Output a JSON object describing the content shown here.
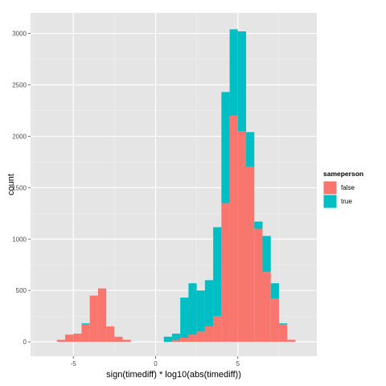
{
  "chart_data": {
    "type": "bar",
    "subtype": "stacked-histogram",
    "xlabel": "sign(timediff) * log10(abs(timediff))",
    "ylabel": "count",
    "xlim": [
      -7.6,
      9.8
    ],
    "ylim": [
      -140,
      3200
    ],
    "x_ticks": [
      -5,
      0,
      5
    ],
    "x_tick_labels": [
      "-5",
      "0",
      "5"
    ],
    "y_ticks": [
      0,
      500,
      1000,
      1500,
      2000,
      2500,
      3000
    ],
    "y_tick_labels": [
      "0",
      "500",
      "1000",
      "1500",
      "2000",
      "2500",
      "3000"
    ],
    "grid": true,
    "legend": {
      "title": "sameperson",
      "position": "right",
      "entries": [
        {
          "label": "false",
          "color": "#F8766D"
        },
        {
          "label": "true",
          "color": "#00BFC4"
        }
      ]
    },
    "bin_width": 0.5,
    "bin_starts": [
      -6.0,
      -5.5,
      -5.0,
      -4.5,
      -4.0,
      -3.5,
      -3.0,
      -2.5,
      -2.0,
      -1.5,
      -1.0,
      -0.5,
      0.0,
      0.5,
      1.0,
      1.5,
      2.0,
      2.5,
      3.0,
      3.5,
      4.0,
      4.5,
      5.0,
      5.5,
      6.0,
      6.5,
      7.0,
      7.5,
      8.0
    ],
    "series": [
      {
        "name": "false",
        "color": "#F8766D",
        "values": [
          20,
          70,
          80,
          170,
          450,
          520,
          150,
          50,
          20,
          0,
          0,
          0,
          0,
          0,
          20,
          40,
          70,
          100,
          150,
          250,
          1350,
          2200,
          2050,
          1700,
          1100,
          680,
          420,
          170,
          20
        ]
      },
      {
        "name": "true",
        "color": "#00BFC4",
        "values": [
          0,
          0,
          0,
          10,
          0,
          0,
          0,
          0,
          0,
          0,
          0,
          0,
          0,
          50,
          60,
          390,
          500,
          400,
          450,
          865,
          1080,
          840,
          970,
          340,
          70,
          350,
          150,
          10,
          0
        ]
      }
    ]
  }
}
